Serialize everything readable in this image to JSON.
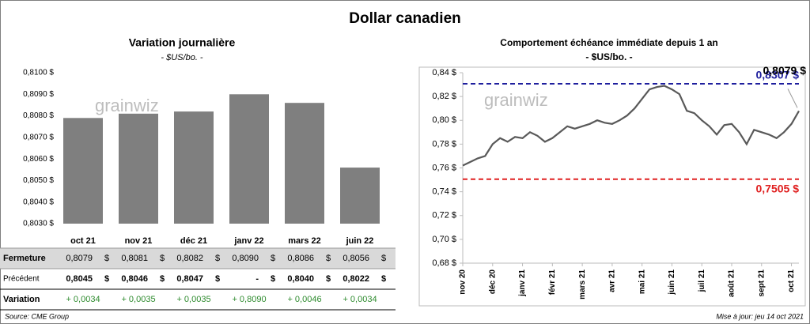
{
  "title": "Dollar canadien",
  "watermark": "grainwiz",
  "source": "Source: CME Group",
  "updated": "Mise à jour: jeu 14 oct 2021",
  "chart_data": [
    {
      "type": "bar",
      "title": "Variation  journalière",
      "subtitle": "- $US/bo. -",
      "categories": [
        "oct 21",
        "nov 21",
        "déc 21",
        "janv 22",
        "mars 22",
        "juin 22"
      ],
      "values": [
        0.8079,
        0.8081,
        0.8082,
        0.809,
        0.8086,
        0.8056
      ],
      "color": "#7f7f7f",
      "ylim": [
        0.803,
        0.81
      ],
      "yticks": [
        {
          "value": 0.803,
          "label": "0,8030 $"
        },
        {
          "value": 0.804,
          "label": "0,8040 $"
        },
        {
          "value": 0.805,
          "label": "0,8050 $"
        },
        {
          "value": 0.806,
          "label": "0,8060 $"
        },
        {
          "value": 0.807,
          "label": "0,8070 $"
        },
        {
          "value": 0.808,
          "label": "0,8080 $"
        },
        {
          "value": 0.809,
          "label": "0,8090 $"
        },
        {
          "value": 0.81,
          "label": "0,8100 $"
        }
      ],
      "grid": false
    },
    {
      "type": "line",
      "title": "Comportement échéance immédiate depuis 1 an",
      "subtitle": "- $US/bo. -",
      "categories": [
        "nov 20",
        null,
        null,
        null,
        "déc 20",
        null,
        null,
        null,
        "janv 21",
        null,
        null,
        null,
        "févr 21",
        null,
        null,
        null,
        "mars 21",
        null,
        null,
        null,
        "avr 21",
        null,
        null,
        null,
        "mai 21",
        null,
        null,
        null,
        "juin 21",
        null,
        null,
        null,
        "juil 21",
        null,
        null,
        null,
        "août 21",
        null,
        null,
        null,
        "sept 21",
        null,
        null,
        null,
        "oct 21",
        null
      ],
      "series": [
        {
          "name": "Dollar canadien",
          "color": "#595959",
          "values": [
            0.762,
            0.765,
            0.768,
            0.77,
            0.78,
            0.785,
            0.782,
            0.786,
            0.785,
            0.79,
            0.787,
            0.782,
            0.785,
            0.79,
            0.795,
            0.793,
            0.795,
            0.797,
            0.8,
            0.798,
            0.797,
            0.8,
            0.804,
            0.81,
            0.818,
            0.826,
            0.828,
            0.829,
            0.826,
            0.822,
            0.808,
            0.806,
            0.8,
            0.795,
            0.788,
            0.796,
            0.797,
            0.79,
            0.78,
            0.792,
            0.79,
            0.788,
            0.785,
            0.79,
            0.797,
            0.8079
          ]
        }
      ],
      "last_value_label": "0,8079 $",
      "reference_lines": [
        {
          "value": 0.8307,
          "label": "0,8307 $",
          "color": "#1f1f9e"
        },
        {
          "value": 0.7505,
          "label": "0,7505 $",
          "color": "#e02020"
        }
      ],
      "ylim": [
        0.68,
        0.84
      ],
      "yticks": [
        {
          "value": 0.68,
          "label": "0,68 $"
        },
        {
          "value": 0.7,
          "label": "0,70 $"
        },
        {
          "value": 0.72,
          "label": "0,72 $"
        },
        {
          "value": 0.74,
          "label": "0,74 $"
        },
        {
          "value": 0.76,
          "label": "0,76 $"
        },
        {
          "value": 0.78,
          "label": "0,78 $"
        },
        {
          "value": 0.8,
          "label": "0,80 $"
        },
        {
          "value": 0.82,
          "label": "0,82 $"
        },
        {
          "value": 0.84,
          "label": "0,84 $"
        }
      ],
      "grid": false
    }
  ],
  "table": {
    "rows": [
      {
        "label": "Fermeture",
        "unit": "$",
        "cells": [
          "0,8079",
          "0,8081",
          "0,8082",
          "0,8090",
          "0,8086",
          "0,8056"
        ]
      },
      {
        "label": "Précédent",
        "unit": "$",
        "cells": [
          "0,8045",
          "0,8046",
          "0,8047",
          "-",
          "0,8040",
          "0,8022"
        ]
      },
      {
        "label": "Variation",
        "cells": [
          "+ 0,0034",
          "+ 0,0035",
          "+ 0,0035",
          "+ 0,8090",
          "+ 0,0046",
          "+ 0,0034"
        ]
      }
    ]
  }
}
